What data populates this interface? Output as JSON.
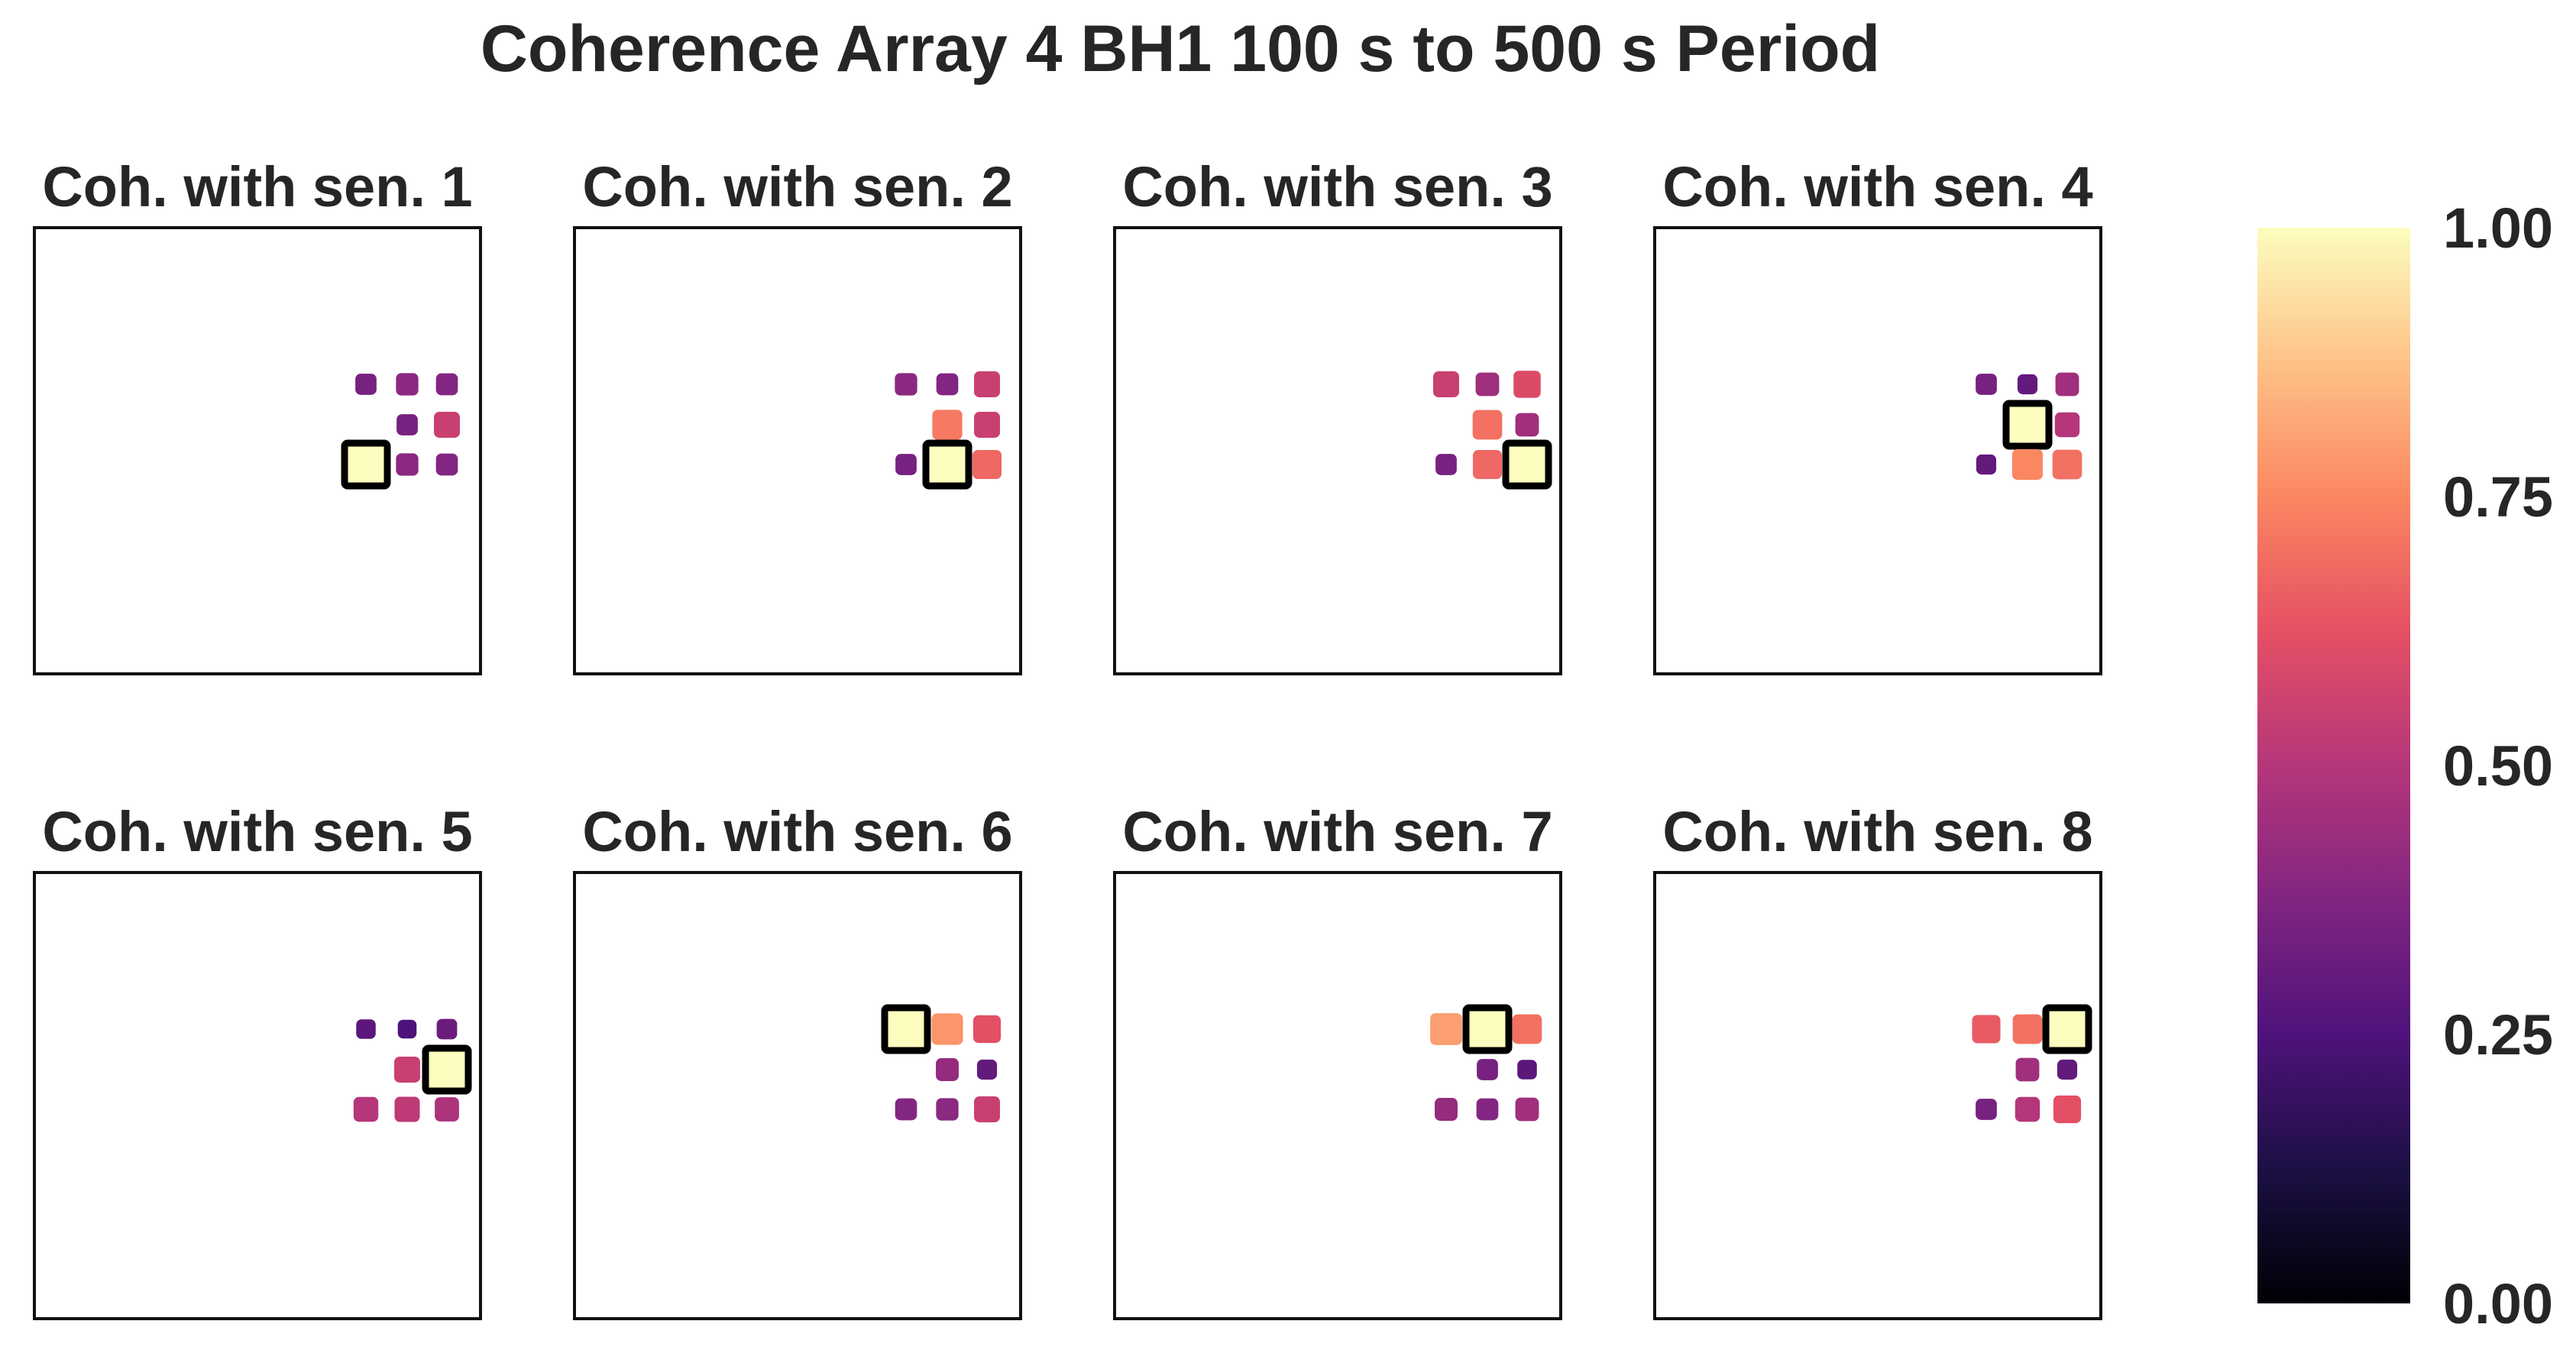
{
  "chart_data": {
    "type": "heatmap",
    "title": "Coherence Array 4 BH1 100 s to 500 s Period",
    "colormap": "magma",
    "colorbar": {
      "min": 0.0,
      "max": 1.0,
      "ticks": [
        "0.00",
        "0.25",
        "0.50",
        "0.75",
        "1.00"
      ]
    },
    "sensor_layout": [
      [
        1,
        2,
        3
      ],
      [
        4,
        5,
        6
      ],
      [
        7,
        8,
        9
      ]
    ],
    "panels": [
      {
        "title": "Coh. with sen. 1",
        "reference": 7,
        "values": [
          0.35,
          0.4,
          0.38,
          null,
          0.35,
          0.55,
          1.0,
          0.4,
          0.38
        ]
      },
      {
        "title": "Coh. with sen. 2",
        "reference": 8,
        "values": [
          0.4,
          0.38,
          0.55,
          null,
          0.72,
          0.55,
          0.35,
          1.0,
          0.68
        ]
      },
      {
        "title": "Coh. with sen. 3",
        "reference": 9,
        "values": [
          0.55,
          0.45,
          0.6,
          null,
          0.7,
          0.45,
          0.35,
          0.68,
          1.0
        ]
      },
      {
        "title": "Coh. with sen. 4",
        "reference": 5,
        "values": [
          0.35,
          0.3,
          0.45,
          null,
          1.0,
          0.5,
          0.3,
          0.75,
          0.7
        ]
      },
      {
        "title": "Coh. with sen. 5",
        "reference": 6,
        "values": [
          0.28,
          0.25,
          0.32,
          null,
          0.55,
          1.0,
          0.5,
          0.52,
          0.48
        ]
      },
      {
        "title": "Coh. with sen. 6",
        "reference": 1,
        "values": [
          1.0,
          0.78,
          0.62,
          null,
          0.42,
          0.3,
          0.38,
          0.4,
          0.55
        ]
      },
      {
        "title": "Coh. with sen. 7",
        "reference": 2,
        "values": [
          0.8,
          1.0,
          0.7,
          null,
          0.35,
          0.28,
          0.42,
          0.38,
          0.45
        ]
      },
      {
        "title": "Coh. with sen. 8",
        "reference": 3,
        "values": [
          0.65,
          0.7,
          1.0,
          null,
          0.45,
          0.3,
          0.35,
          0.5,
          0.62
        ]
      }
    ]
  }
}
